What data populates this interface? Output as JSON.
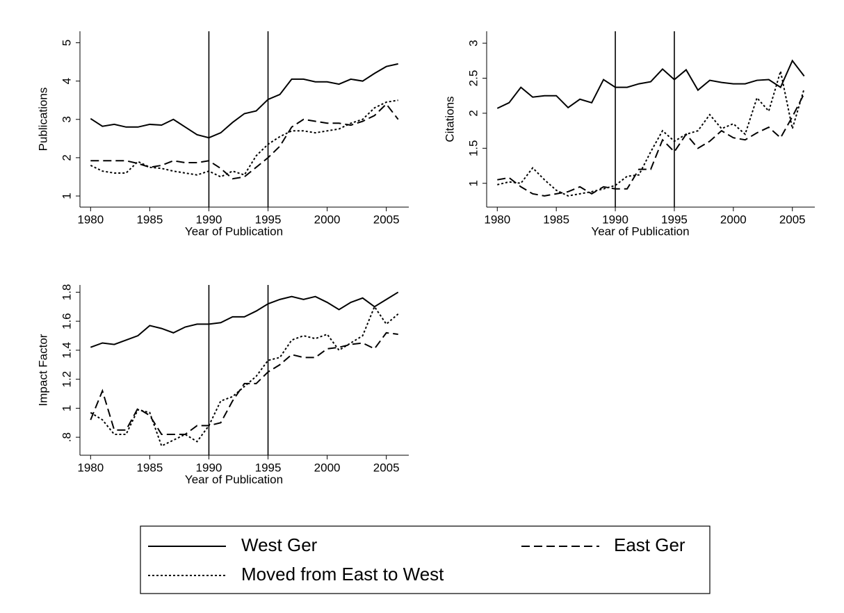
{
  "chart_data": [
    {
      "type": "line",
      "xlabel": "Year of Publication",
      "ylabel": "Publications",
      "x": [
        1980,
        1981,
        1982,
        1983,
        1984,
        1985,
        1986,
        1987,
        1988,
        1989,
        1990,
        1991,
        1992,
        1993,
        1994,
        1995,
        1996,
        1997,
        1998,
        1999,
        2000,
        2001,
        2002,
        2003,
        2004,
        2005,
        2006
      ],
      "series": [
        {
          "name": "West Ger",
          "color": "#000000",
          "style": "solid",
          "values": [
            3.02,
            2.82,
            2.87,
            2.8,
            2.8,
            2.87,
            2.85,
            3.0,
            2.8,
            2.6,
            2.52,
            2.65,
            2.92,
            3.15,
            3.22,
            3.52,
            3.65,
            4.05,
            4.05,
            3.98,
            3.98,
            3.92,
            4.05,
            4.0,
            4.2,
            4.38,
            4.45
          ]
        },
        {
          "name": "East Ger",
          "color": "#000000",
          "style": "dash",
          "values": [
            1.92,
            1.92,
            1.92,
            1.92,
            1.85,
            1.75,
            1.8,
            1.92,
            1.87,
            1.87,
            1.92,
            1.72,
            1.45,
            1.5,
            1.75,
            2.0,
            2.3,
            2.8,
            3.0,
            2.95,
            2.9,
            2.9,
            2.85,
            2.95,
            3.1,
            3.4,
            3.0
          ]
        },
        {
          "name": "Moved from East to West",
          "color": "#000000",
          "style": "dot",
          "values": [
            1.8,
            1.65,
            1.6,
            1.6,
            1.9,
            1.75,
            1.72,
            1.65,
            1.6,
            1.55,
            1.65,
            1.5,
            1.65,
            1.55,
            2.05,
            2.35,
            2.55,
            2.7,
            2.7,
            2.65,
            2.7,
            2.75,
            2.9,
            3.0,
            3.3,
            3.45,
            3.5
          ]
        }
      ],
      "xlim": [
        1979.1,
        2006.9
      ],
      "ylim": [
        0.71,
        5.3
      ],
      "xticks": [
        1980,
        1985,
        1990,
        1995,
        2000,
        2005
      ],
      "yticks": [
        1,
        2,
        3,
        4,
        5
      ],
      "vlines": [
        1990,
        1995
      ]
    },
    {
      "type": "line",
      "xlabel": "Year of Publication",
      "ylabel": "Citations",
      "x": [
        1980,
        1981,
        1982,
        1983,
        1984,
        1985,
        1986,
        1987,
        1988,
        1989,
        1990,
        1991,
        1992,
        1993,
        1994,
        1995,
        1996,
        1997,
        1998,
        1999,
        2000,
        2001,
        2002,
        2003,
        2004,
        2005,
        2006
      ],
      "series": [
        {
          "name": "West Ger",
          "color": "#000000",
          "style": "solid",
          "values": [
            2.07,
            2.15,
            2.37,
            2.23,
            2.25,
            2.25,
            2.08,
            2.2,
            2.15,
            2.48,
            2.37,
            2.37,
            2.42,
            2.45,
            2.63,
            2.48,
            2.62,
            2.33,
            2.47,
            2.44,
            2.42,
            2.42,
            2.47,
            2.48,
            2.37,
            2.75,
            2.53
          ]
        },
        {
          "name": "East Ger",
          "color": "#000000",
          "style": "dash",
          "values": [
            1.05,
            1.08,
            0.95,
            0.85,
            0.82,
            0.85,
            0.88,
            0.95,
            0.85,
            0.95,
            0.92,
            0.92,
            1.2,
            1.2,
            1.62,
            1.45,
            1.7,
            1.5,
            1.6,
            1.75,
            1.65,
            1.62,
            1.72,
            1.8,
            1.65,
            1.95,
            2.28
          ]
        },
        {
          "name": "Moved from East to West",
          "color": "#000000",
          "style": "dot",
          "values": [
            0.98,
            1.02,
            1.0,
            1.22,
            1.05,
            0.9,
            0.82,
            0.85,
            0.88,
            0.92,
            0.97,
            1.1,
            1.12,
            1.45,
            1.75,
            1.6,
            1.7,
            1.75,
            1.98,
            1.78,
            1.85,
            1.7,
            2.22,
            2.03,
            2.6,
            1.78,
            2.35
          ]
        }
      ],
      "xlim": [
        1979.1,
        2006.9
      ],
      "ylim": [
        0.66,
        3.17
      ],
      "xticks": [
        1980,
        1985,
        1990,
        1995,
        2000,
        2005
      ],
      "yticks": [
        1,
        1.5,
        2,
        2.5,
        3
      ],
      "vlines": [
        1990,
        1995
      ]
    },
    {
      "type": "line",
      "xlabel": "Year of Publication",
      "ylabel": "Impact Factor",
      "x": [
        1980,
        1981,
        1982,
        1983,
        1984,
        1985,
        1986,
        1987,
        1988,
        1989,
        1990,
        1991,
        1992,
        1993,
        1994,
        1995,
        1996,
        1997,
        1998,
        1999,
        2000,
        2001,
        2002,
        2003,
        2004,
        2005,
        2006
      ],
      "series": [
        {
          "name": "West Ger",
          "color": "#000000",
          "style": "solid",
          "values": [
            1.42,
            1.45,
            1.44,
            1.47,
            1.5,
            1.57,
            1.55,
            1.52,
            1.56,
            1.58,
            1.58,
            1.59,
            1.63,
            1.63,
            1.67,
            1.72,
            1.75,
            1.77,
            1.75,
            1.77,
            1.73,
            1.68,
            1.73,
            1.76,
            1.7,
            1.75,
            1.8
          ]
        },
        {
          "name": "East Ger",
          "color": "#000000",
          "style": "dash",
          "values": [
            0.92,
            1.12,
            0.85,
            0.85,
            1.0,
            0.95,
            0.82,
            0.82,
            0.82,
            0.88,
            0.88,
            0.9,
            1.05,
            1.17,
            1.17,
            1.25,
            1.3,
            1.37,
            1.35,
            1.35,
            1.41,
            1.42,
            1.44,
            1.45,
            1.41,
            1.52,
            1.51
          ]
        },
        {
          "name": "Moved from East to West",
          "color": "#000000",
          "style": "dot",
          "values": [
            0.97,
            0.92,
            0.82,
            0.82,
            0.99,
            0.97,
            0.74,
            0.78,
            0.82,
            0.77,
            0.88,
            1.05,
            1.08,
            1.15,
            1.22,
            1.33,
            1.35,
            1.47,
            1.5,
            1.48,
            1.51,
            1.4,
            1.45,
            1.5,
            1.7,
            1.58,
            1.65
          ]
        }
      ],
      "xlim": [
        1979.1,
        2006.9
      ],
      "ylim": [
        0.676,
        1.85
      ],
      "xticks": [
        1980,
        1985,
        1990,
        1995,
        2000,
        2005
      ],
      "yticks": [
        {
          "value": 0.8,
          "label": ".8"
        },
        1,
        1.2,
        1.4,
        1.6,
        1.8
      ],
      "vlines": [
        1990,
        1995
      ]
    }
  ]
}
